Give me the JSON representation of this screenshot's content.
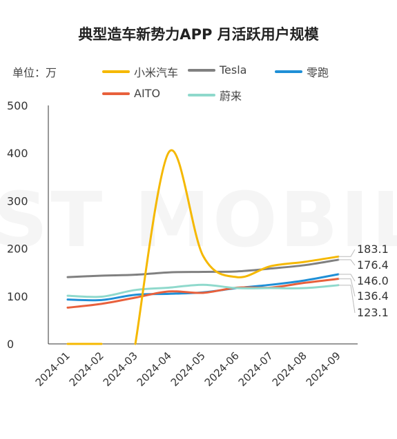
{
  "header": {
    "title": "典型造车新势力APP 月活跃用户规模",
    "unit_label": "单位：万"
  },
  "chart_data": {
    "type": "line",
    "title": "典型造车新势力APP 月活跃用户规模",
    "xlabel": "",
    "ylabel": "",
    "categories": [
      "2024-01",
      "2024-02",
      "2024-03",
      "2024-04",
      "2024-05",
      "2024-06",
      "2024-07",
      "2024-08",
      "2024-09"
    ],
    "ylim": [
      0,
      500
    ],
    "yticks": [
      0,
      100,
      200,
      300,
      400,
      500
    ],
    "grid": false,
    "legend_placement": "top",
    "series": [
      {
        "name": "小米汽车",
        "color": "#f5b800",
        "values": [
          0,
          0,
          0,
          403,
          185,
          140,
          163,
          172,
          183.1
        ],
        "end_label": "183.1"
      },
      {
        "name": "Tesla",
        "color": "#808080",
        "values": [
          140,
          143,
          145,
          150,
          151,
          152,
          158,
          165,
          176.4
        ],
        "end_label": "176.4"
      },
      {
        "name": "零跑",
        "color": "#1f8fd6",
        "values": [
          93,
          92,
          103,
          105,
          108,
          117,
          124,
          133,
          146.0
        ],
        "end_label": "146.0"
      },
      {
        "name": "AITO",
        "color": "#e8603c",
        "values": [
          76,
          84,
          97,
          110,
          107,
          118,
          118,
          128,
          136.4
        ],
        "end_label": "136.4"
      },
      {
        "name": "蔚来",
        "color": "#8fd9cc",
        "values": [
          101,
          99,
          113,
          118,
          124,
          117,
          117,
          117,
          123.1
        ],
        "end_label": "123.1"
      }
    ]
  }
}
